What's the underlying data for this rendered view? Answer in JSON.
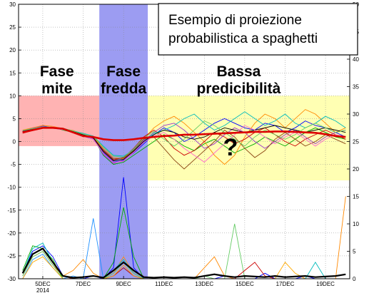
{
  "chart_data": {
    "type": "line",
    "title_lines": [
      "Esempio di proiezione",
      "probabilistica a spaghetti"
    ],
    "x_ticks": [
      {
        "day": 5,
        "label": "5DEC",
        "sub": "2014"
      },
      {
        "day": 7,
        "label": "7DEC"
      },
      {
        "day": 9,
        "label": "9DEC"
      },
      {
        "day": 11,
        "label": "11DEC"
      },
      {
        "day": 13,
        "label": "13DEC"
      },
      {
        "day": 15,
        "label": "15DEC"
      },
      {
        "day": 17,
        "label": "17DEC"
      },
      {
        "day": 19,
        "label": "19DEC"
      }
    ],
    "x_range_days": [
      3.8,
      20.2
    ],
    "y_left": {
      "min": -30,
      "max": 30,
      "ticks": [
        30,
        25,
        20,
        15,
        10,
        5,
        0,
        -5,
        -10,
        -15,
        -20,
        -25,
        -30
      ]
    },
    "y_right": {
      "min": 0,
      "max": 50,
      "ticks": [
        50,
        45,
        40,
        35,
        30,
        25,
        20,
        15,
        10,
        5,
        0
      ]
    },
    "phases": [
      {
        "label_lines": [
          "Fase",
          "mite"
        ],
        "x_start_day": 3.8,
        "x_end_day": 7.8,
        "y_top": 10,
        "y_bottom": -1,
        "color": "#ff9a9a"
      },
      {
        "label_lines": [
          "Fase",
          "fredda"
        ],
        "x_start_day": 7.8,
        "x_end_day": 10.2,
        "y_top": 30,
        "y_bottom": -30,
        "color": "#8b8bf0"
      },
      {
        "label_lines": [
          "Bassa",
          "predicibilità"
        ],
        "x_start_day": 10.2,
        "x_end_day": 20.2,
        "y_top": 10,
        "y_bottom": -8.5,
        "color": "#ffff99"
      }
    ],
    "question_mark": "?",
    "temperature_series": {
      "x_days": [
        4.0,
        4.5,
        5.0,
        5.5,
        6.0,
        6.5,
        7.0,
        7.5,
        8.0,
        8.5,
        9.0,
        9.5,
        10.0,
        10.5,
        11.0,
        11.5,
        12.0,
        12.5,
        13.0,
        13.5,
        14.0,
        14.5,
        15.0,
        15.5,
        16.0,
        16.5,
        17.0,
        17.5,
        18.0,
        18.5,
        19.0,
        19.5,
        20.0
      ],
      "mean": [
        2.0,
        2.5,
        3.0,
        3.0,
        2.8,
        2.0,
        1.2,
        1.0,
        0.5,
        0.3,
        0.3,
        0.5,
        0.8,
        1.0,
        1.2,
        1.3,
        1.5,
        1.5,
        1.6,
        1.7,
        1.8,
        1.9,
        2.0,
        2.1,
        2.1,
        2.2,
        2.2,
        2.1,
        2.0,
        1.9,
        1.6,
        1.2,
        1.0
      ],
      "members": [
        {
          "color": "#0000ff",
          "values": [
            2.0,
            2.8,
            3.4,
            3.0,
            2.6,
            2.2,
            1.2,
            0.5,
            -2.5,
            -4.5,
            -4.2,
            -2.5,
            -0.5,
            1.5,
            3.0,
            2.0,
            0.0,
            1.0,
            2.5,
            4.0,
            5.0,
            4.0,
            3.0,
            2.5,
            4.0,
            3.5,
            2.0,
            3.0,
            4.5,
            3.5,
            3.0,
            2.0,
            1.0
          ]
        },
        {
          "color": "#00aa00",
          "values": [
            2.2,
            2.6,
            3.0,
            3.2,
            2.5,
            2.0,
            1.5,
            0.8,
            -3.0,
            -5.0,
            -4.5,
            -3.0,
            -1.5,
            0.0,
            1.5,
            0.5,
            -1.0,
            -2.0,
            -0.5,
            0.5,
            -1.0,
            -2.5,
            -1.5,
            -0.5,
            1.0,
            0.0,
            -1.0,
            0.5,
            2.0,
            3.0,
            2.0,
            1.0,
            0.5
          ]
        },
        {
          "color": "#ff8800",
          "values": [
            2.5,
            3.0,
            3.5,
            3.3,
            2.8,
            2.4,
            1.6,
            1.0,
            -1.5,
            -3.5,
            -3.8,
            -2.0,
            0.5,
            3.0,
            4.5,
            5.5,
            4.0,
            2.0,
            0.0,
            -3.0,
            -5.0,
            -3.0,
            1.0,
            4.0,
            6.0,
            5.0,
            3.0,
            5.0,
            7.0,
            6.0,
            4.0,
            2.0,
            3.0
          ]
        },
        {
          "color": "#cc0000",
          "values": [
            1.8,
            2.4,
            3.1,
            3.0,
            2.7,
            2.1,
            1.4,
            0.6,
            -2.0,
            -4.0,
            -3.5,
            -1.5,
            1.0,
            2.5,
            1.0,
            -1.5,
            -3.0,
            -2.0,
            0.0,
            2.0,
            1.0,
            -0.5,
            0.5,
            2.0,
            3.0,
            1.5,
            0.0,
            -1.0,
            0.5,
            1.5,
            2.5,
            1.5,
            0.5
          ]
        },
        {
          "color": "#00bbbb",
          "values": [
            2.1,
            2.7,
            3.2,
            3.1,
            2.9,
            2.3,
            1.8,
            1.2,
            -1.0,
            -3.0,
            -3.2,
            -1.8,
            0.0,
            1.8,
            2.5,
            3.5,
            5.0,
            6.0,
            4.0,
            2.5,
            3.5,
            5.0,
            6.5,
            5.0,
            3.5,
            4.5,
            6.0,
            4.0,
            3.0,
            4.0,
            5.5,
            4.5,
            3.0
          ]
        },
        {
          "color": "#9933cc",
          "values": [
            2.3,
            2.9,
            3.3,
            2.9,
            2.6,
            2.2,
            1.3,
            0.7,
            -2.8,
            -4.8,
            -4.0,
            -2.2,
            0.2,
            2.0,
            3.5,
            4.0,
            2.5,
            0.5,
            -1.5,
            -0.5,
            1.5,
            3.0,
            2.0,
            0.0,
            -1.5,
            0.0,
            1.5,
            2.5,
            1.0,
            -0.5,
            1.0,
            2.0,
            2.5
          ]
        },
        {
          "color": "#8b4513",
          "values": [
            2.0,
            2.5,
            2.9,
            3.0,
            2.7,
            2.0,
            1.5,
            0.9,
            -1.8,
            -3.8,
            -3.6,
            -1.9,
            0.5,
            1.0,
            -1.5,
            -4.0,
            -6.0,
            -4.0,
            -2.0,
            0.0,
            2.5,
            1.0,
            -1.5,
            -3.5,
            -2.0,
            0.5,
            2.0,
            0.5,
            -1.0,
            0.0,
            1.5,
            0.5,
            -0.5
          ]
        },
        {
          "color": "#000000",
          "values": [
            2.2,
            2.7,
            3.1,
            3.0,
            2.8,
            2.2,
            1.5,
            0.8,
            -2.2,
            -4.2,
            -3.9,
            -2.1,
            0.0,
            1.5,
            2.5,
            2.0,
            1.0,
            0.5,
            1.0,
            2.0,
            3.0,
            2.5,
            2.0,
            2.5,
            3.0,
            3.5,
            3.0,
            2.5,
            2.0,
            2.5,
            3.0,
            2.5,
            2.0
          ]
        },
        {
          "color": "#66cc66",
          "values": [
            2.4,
            2.8,
            3.2,
            3.1,
            2.9,
            2.3,
            1.6,
            1.1,
            -1.2,
            -3.2,
            -3.4,
            -1.6,
            0.8,
            2.2,
            0.5,
            -1.0,
            0.5,
            2.5,
            4.5,
            3.5,
            2.0,
            0.5,
            -1.0,
            1.0,
            2.5,
            1.5,
            0.5,
            1.5,
            3.0,
            4.0,
            3.0,
            2.0,
            2.5
          ]
        },
        {
          "color": "#ff66cc",
          "values": [
            1.9,
            2.6,
            3.0,
            3.2,
            2.6,
            2.1,
            1.3,
            0.5,
            -2.6,
            -4.6,
            -4.3,
            -2.4,
            -0.2,
            1.2,
            2.0,
            0.5,
            -1.5,
            -3.0,
            -4.5,
            -2.5,
            -0.5,
            1.5,
            3.5,
            2.5,
            1.0,
            -0.5,
            1.0,
            2.0,
            0.5,
            -1.0,
            0.5,
            1.5,
            1.0
          ]
        }
      ]
    },
    "precip_series": {
      "x_days": [
        4.0,
        4.5,
        5.0,
        5.5,
        6.0,
        6.5,
        7.0,
        7.5,
        8.0,
        8.5,
        9.0,
        9.5,
        10.0,
        10.5,
        11.0,
        11.5,
        12.0,
        12.5,
        13.0,
        13.5,
        14.0,
        14.5,
        15.0,
        15.5,
        16.0,
        16.5,
        17.0,
        17.5,
        18.0,
        18.5,
        19.0,
        19.5,
        20.0
      ],
      "mean": [
        1.0,
        4.5,
        5.5,
        3.0,
        0.5,
        0.2,
        0.3,
        0.5,
        0.2,
        1.5,
        3.0,
        1.5,
        0.3,
        0.2,
        0.3,
        0.2,
        0.3,
        0.2,
        0.5,
        0.8,
        0.5,
        0.3,
        0.5,
        0.4,
        0.3,
        0.5,
        0.3,
        0.4,
        0.5,
        0.3,
        0.4,
        0.5,
        0.8
      ],
      "members": [
        {
          "color": "#0000ff",
          "values": [
            1.0,
            5.0,
            6.0,
            4.0,
            0.5,
            0.0,
            0.0,
            0.5,
            0.0,
            2.0,
            18.5,
            2.0,
            0.0,
            0.0,
            0.0,
            0.0,
            0.0,
            0.0,
            0.0,
            0.0,
            0.5,
            0.0,
            0.0,
            0.0,
            1.0,
            0.0,
            0.0,
            0.0,
            0.5,
            0.0,
            0.0,
            0.0,
            0.0
          ]
        },
        {
          "color": "#00aa00",
          "values": [
            1.5,
            6.0,
            5.5,
            3.5,
            0.0,
            0.0,
            0.0,
            0.0,
            0.0,
            3.0,
            13.0,
            4.0,
            0.0,
            0.0,
            0.0,
            0.0,
            0.0,
            0.0,
            0.0,
            0.0,
            0.0,
            0.0,
            0.0,
            0.0,
            0.0,
            0.0,
            0.0,
            0.0,
            0.0,
            0.0,
            0.0,
            0.0,
            0.0
          ]
        },
        {
          "color": "#ff8800",
          "values": [
            0.5,
            4.0,
            5.0,
            2.5,
            0.5,
            1.5,
            3.5,
            1.0,
            0.0,
            1.0,
            4.0,
            1.0,
            0.0,
            0.0,
            0.0,
            0.0,
            0.0,
            0.0,
            2.0,
            4.0,
            0.5,
            0.0,
            0.0,
            0.0,
            0.0,
            0.0,
            0.0,
            0.0,
            0.0,
            0.0,
            0.0,
            0.0,
            15.0
          ]
        },
        {
          "color": "#1e90ff",
          "values": [
            0.0,
            3.5,
            4.5,
            2.0,
            0.0,
            0.5,
            0.0,
            11.0,
            0.0,
            0.5,
            2.0,
            0.5,
            0.0,
            0.0,
            0.0,
            0.0,
            0.0,
            0.0,
            0.0,
            0.0,
            0.0,
            0.0,
            0.0,
            0.0,
            0.0,
            0.0,
            0.0,
            0.0,
            0.0,
            0.0,
            0.0,
            0.0,
            0.0
          ]
        },
        {
          "color": "#00bbbb",
          "values": [
            1.0,
            5.5,
            6.5,
            3.0,
            0.5,
            0.0,
            0.0,
            0.0,
            0.0,
            1.5,
            3.5,
            1.0,
            0.0,
            0.0,
            0.0,
            0.0,
            0.0,
            0.0,
            0.0,
            0.0,
            0.0,
            0.0,
            0.0,
            0.0,
            0.0,
            0.0,
            0.0,
            0.0,
            0.0,
            3.0,
            0.0,
            0.0,
            0.0
          ]
        },
        {
          "color": "#66cc66",
          "values": [
            0.5,
            4.0,
            5.0,
            2.5,
            0.0,
            0.0,
            0.0,
            0.0,
            0.0,
            1.0,
            3.0,
            1.0,
            0.0,
            0.0,
            0.0,
            0.0,
            0.0,
            0.0,
            0.5,
            0.0,
            0.0,
            10.0,
            0.0,
            0.0,
            0.0,
            0.0,
            0.0,
            0.0,
            0.0,
            0.0,
            0.0,
            0.0,
            0.0
          ]
        },
        {
          "color": "#cc0000",
          "values": [
            1.0,
            4.5,
            5.5,
            3.0,
            0.5,
            0.0,
            0.0,
            0.0,
            0.0,
            0.5,
            2.0,
            0.5,
            0.0,
            0.0,
            0.0,
            0.0,
            0.0,
            0.0,
            0.0,
            0.0,
            0.0,
            0.0,
            1.5,
            3.0,
            0.5,
            0.0,
            0.0,
            0.0,
            0.0,
            0.0,
            0.0,
            0.0,
            0.0
          ]
        },
        {
          "color": "#ffaa00",
          "values": [
            0.0,
            3.0,
            4.0,
            2.0,
            0.0,
            0.0,
            0.0,
            0.0,
            0.0,
            0.5,
            2.5,
            0.5,
            0.0,
            0.0,
            0.0,
            0.0,
            0.0,
            0.0,
            0.0,
            0.0,
            0.0,
            0.0,
            0.0,
            0.0,
            0.0,
            0.0,
            3.0,
            1.0,
            0.0,
            0.0,
            0.0,
            0.0,
            0.0
          ]
        }
      ]
    }
  }
}
